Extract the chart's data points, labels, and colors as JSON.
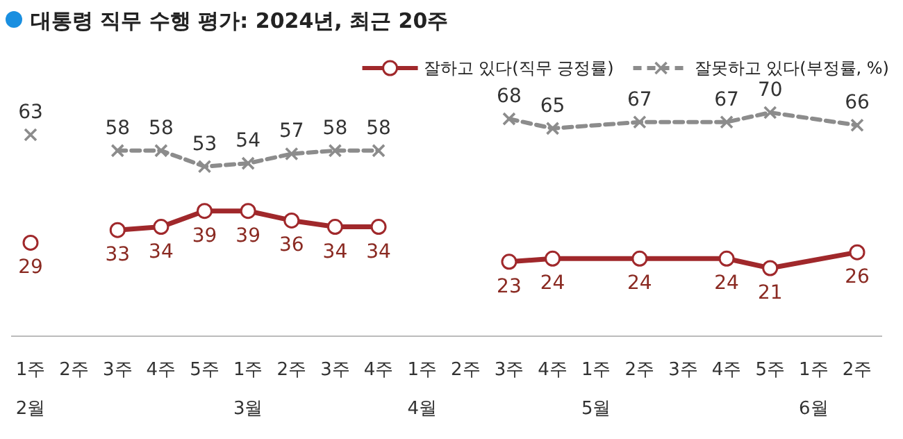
{
  "chart_data": {
    "type": "line",
    "title": "대통령 직무 수행 평가: 2024년, 최근 20주",
    "categories": [
      "1주\n2월",
      "2주",
      "3주",
      "4주",
      "5주",
      "1주\n3월",
      "2주",
      "3주",
      "4주",
      "1주\n4월",
      "2주",
      "3주",
      "4주",
      "1주\n5월",
      "2주",
      "3주",
      "4주",
      "5주",
      "1주\n6월",
      "2주"
    ],
    "series": [
      {
        "type": "scatter",
        "color": "#a0282b",
        "marker": "circle",
        "values": [
          29,
          null,
          null,
          null,
          null,
          null,
          null,
          null,
          null,
          null,
          null,
          null,
          null,
          null,
          null,
          null,
          null,
          null,
          null,
          null
        ]
      },
      {
        "name": "잘하고 있다(직무 긍정률)",
        "color": "#a0282b",
        "marker": "circle",
        "line_style": "solid",
        "values": [
          null,
          null,
          33,
          34,
          39,
          39,
          36,
          34,
          34,
          null,
          null,
          null,
          null,
          null,
          null,
          null,
          null,
          null,
          null,
          null
        ]
      },
      {
        "color": "#a0282b",
        "marker": "circle",
        "line_style": "solid",
        "values": [
          null,
          null,
          null,
          null,
          null,
          null,
          null,
          null,
          null,
          null,
          null,
          23,
          24,
          null,
          24,
          null,
          24,
          21,
          null,
          26
        ]
      },
      {
        "type": "scatter",
        "color": "#8c8c8c",
        "marker": "cross",
        "values": [
          63,
          null,
          null,
          null,
          null,
          null,
          null,
          null,
          null,
          null,
          null,
          null,
          null,
          null,
          null,
          null,
          null,
          null,
          null,
          null
        ]
      },
      {
        "name": "잘못하고 있다(부정률, %)",
        "color": "#8c8c8c",
        "marker": "cross",
        "line_style": "dashed",
        "values": [
          null,
          null,
          58,
          58,
          53,
          54,
          57,
          58,
          58,
          null,
          null,
          null,
          null,
          null,
          null,
          null,
          null,
          null,
          null,
          null
        ]
      },
      {
        "color": "#8c8c8c",
        "marker": "cross",
        "line_style": "dashed",
        "values": [
          null,
          null,
          null,
          null,
          null,
          null,
          null,
          null,
          null,
          null,
          null,
          68,
          65,
          null,
          67,
          null,
          67,
          70,
          null,
          66
        ]
      }
    ],
    "data_labels": true,
    "legend": "top right"
  }
}
